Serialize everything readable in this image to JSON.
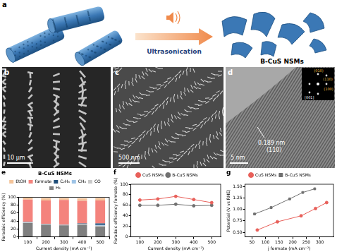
{
  "panels": {
    "a": {
      "label": "a",
      "arrow_text": "Ultrasonication",
      "product_label": "B-CuS NSMs"
    },
    "b": {
      "label": "b",
      "scale_bar": "10 μm"
    },
    "c": {
      "label": "c",
      "scale_bar": "500 nm"
    },
    "d": {
      "label": "d",
      "scale_bar": "5 nm",
      "lattice_spacing": "0.189 nm",
      "lattice_plane": "(110)",
      "inset": {
        "zone_axis": "[001]",
        "spots": [
          "(010)",
          "(110)",
          "(100)"
        ]
      }
    }
  },
  "chart_data": [
    {
      "panel_label": "e",
      "type": "bar",
      "stacked": true,
      "title": "B-CuS NSMs",
      "categories": [
        "100",
        "200",
        "300",
        "400",
        "500"
      ],
      "x_label": "Current density (mA cm⁻²)",
      "y_label": "Faradaic efficiency (%)",
      "ylim": [
        0,
        100
      ],
      "yticks": [
        0,
        20,
        40,
        60,
        80,
        100
      ],
      "grid": false,
      "legend": "top",
      "series": [
        {
          "name": "H₂",
          "color": "#7f7f7f",
          "values": [
            35,
            31,
            29,
            31,
            26
          ]
        },
        {
          "name": "CO",
          "color": "#c9c9c9",
          "values": [
            1,
            1,
            1,
            1,
            2
          ]
        },
        {
          "name": "CH₄",
          "color": "#9dc3e6",
          "values": [
            1,
            0.5,
            0.5,
            1,
            2
          ]
        },
        {
          "name": "C₂H₄",
          "color": "#1f4e79",
          "values": [
            1,
            0.5,
            0.5,
            1,
            4
          ]
        },
        {
          "name": "formate",
          "color": "#f4837d",
          "values": [
            56,
            59,
            62,
            57,
            58
          ]
        },
        {
          "name": "EtOH",
          "color": "#f4c49a",
          "values": [
            5,
            6,
            5,
            6,
            6
          ]
        }
      ]
    },
    {
      "panel_label": "f",
      "type": "line",
      "categories": [
        "100",
        "200",
        "300",
        "400",
        "500"
      ],
      "x_label": "Current density (mA cm⁻²)",
      "y_label": "Faradaic efficiency formate (%)",
      "ylim": [
        0,
        100
      ],
      "yticks": [
        0,
        20,
        40,
        60,
        80,
        100
      ],
      "grid": false,
      "legend": "top",
      "series": [
        {
          "name": "CuS NSMs",
          "color": "#e8605a",
          "marker": "circle",
          "values": [
            70,
            72,
            77,
            71,
            65
          ]
        },
        {
          "name": "B-CuS NSMs",
          "color": "#707070",
          "marker": "circle",
          "values": [
            60,
            60,
            62,
            59,
            60
          ]
        }
      ]
    },
    {
      "panel_label": "g",
      "type": "line",
      "x_label": "j formate (mA cm⁻²)",
      "y_label": "Potential (V vs RHE)",
      "xlim": [
        25,
        350
      ],
      "xticks": [
        50,
        100,
        150,
        200,
        250,
        300
      ],
      "ylim": [
        0.4,
        1.55
      ],
      "yticks": [
        {
          "value": 0.5,
          "label": "0.50"
        },
        {
          "value": 0.75,
          "label": "0.75"
        },
        {
          "value": 1,
          "label": "1.00"
        },
        {
          "value": 1.25,
          "label": "1.25"
        },
        {
          "value": 1.5,
          "label": "1.50"
        }
      ],
      "grid": false,
      "legend": "top",
      "series": [
        {
          "name": "CuS NSMs",
          "color": "#e8605a",
          "marker": "circle",
          "x": [
            70,
            144,
            231,
            284,
            325
          ],
          "values": [
            0.55,
            0.73,
            0.86,
            1.02,
            1.15
          ]
        },
        {
          "name": "B-CuS NSMs",
          "color": "#707070",
          "marker": "square",
          "x": [
            60,
            121,
            189,
            237,
            281
          ],
          "values": [
            0.9,
            1.04,
            1.23,
            1.37,
            1.45
          ]
        }
      ]
    }
  ]
}
